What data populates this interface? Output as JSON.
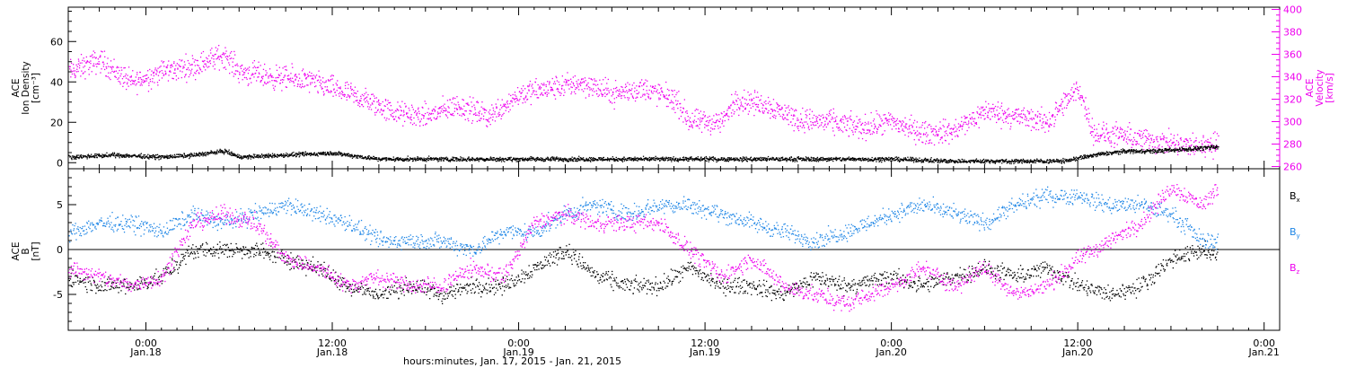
{
  "chart_data": [
    {
      "type": "scatter",
      "panel": "top",
      "x_axis": {
        "range": [
          "2015-01-17T19:00",
          "2015-01-21T01:00"
        ],
        "major_ticks": [
          {
            "t": "2015-01-18T00:00",
            "time": "0:00",
            "day": "Jan.18"
          },
          {
            "t": "2015-01-18T12:00",
            "time": "12:00",
            "day": "Jan.18"
          },
          {
            "t": "2015-01-19T00:00",
            "time": "0:00",
            "day": "Jan.19"
          },
          {
            "t": "2015-01-19T12:00",
            "time": "12:00",
            "day": "Jan.19"
          },
          {
            "t": "2015-01-20T00:00",
            "time": "0:00",
            "day": "Jan.20"
          },
          {
            "t": "2015-01-20T12:00",
            "time": "12:00",
            "day": "Jan.20"
          },
          {
            "t": "2015-01-21T00:00",
            "time": "0:00",
            "day": "Jan.21"
          }
        ],
        "title": "hours:minutes, Jan. 17, 2015 - Jan. 21, 2015"
      },
      "left_axis": {
        "label_lines": [
          "ACE",
          "Ion Density",
          "[cm⁻³]"
        ],
        "ylim": [
          -3,
          77
        ],
        "ticks": [
          0,
          20,
          40,
          60
        ]
      },
      "right_axis": {
        "label_lines": [
          "ACE",
          "Velocity",
          "[km/s]"
        ],
        "ylim": [
          258,
          402
        ],
        "ticks": [
          260,
          280,
          300,
          320,
          340,
          360,
          380,
          400
        ],
        "color": "#ee00ee"
      },
      "series": [
        {
          "axis": "left",
          "color": "#000000",
          "points": [
            [
              "2015-01-17T19:00",
              3
            ],
            [
              "2015-01-17T22:00",
              4
            ],
            [
              "2015-01-18T01:00",
              3
            ],
            [
              "2015-01-18T03:00",
              4
            ],
            [
              "2015-01-18T05:00",
              6
            ],
            [
              "2015-01-18T06:00",
              3
            ],
            [
              "2015-01-18T09:00",
              4
            ],
            [
              "2015-01-18T12:00",
              5
            ],
            [
              "2015-01-18T15:00",
              2
            ],
            [
              "2015-01-18T20:00",
              2
            ],
            [
              "2015-01-19T00:00",
              2
            ],
            [
              "2015-01-19T05:00",
              2
            ],
            [
              "2015-01-19T10:00",
              2
            ],
            [
              "2015-01-19T15:00",
              2
            ],
            [
              "2015-01-19T20:00",
              2
            ],
            [
              "2015-01-20T00:00",
              2
            ],
            [
              "2015-01-20T04:00",
              1
            ],
            [
              "2015-01-20T08:00",
              1
            ],
            [
              "2015-01-20T11:00",
              1
            ],
            [
              "2015-01-20T13:00",
              4
            ],
            [
              "2015-01-20T15:00",
              6
            ],
            [
              "2015-01-20T17:00",
              6
            ],
            [
              "2015-01-20T19:00",
              7
            ],
            [
              "2015-01-20T21:00",
              8
            ]
          ]
        },
        {
          "axis": "right",
          "color": "#ee00ee",
          "points": [
            [
              "2015-01-17T19:00",
              345
            ],
            [
              "2015-01-17T21:00",
              355
            ],
            [
              "2015-01-17T23:00",
              335
            ],
            [
              "2015-01-18T01:00",
              345
            ],
            [
              "2015-01-18T03:00",
              350
            ],
            [
              "2015-01-18T05:00",
              360
            ],
            [
              "2015-01-18T06:00",
              345
            ],
            [
              "2015-01-18T08:00",
              340
            ],
            [
              "2015-01-18T10:00",
              338
            ],
            [
              "2015-01-18T12:00",
              330
            ],
            [
              "2015-01-18T14:00",
              320
            ],
            [
              "2015-01-18T16:00",
              308
            ],
            [
              "2015-01-18T18:00",
              305
            ],
            [
              "2015-01-18T20:00",
              315
            ],
            [
              "2015-01-18T22:00",
              305
            ],
            [
              "2015-01-19T00:00",
              325
            ],
            [
              "2015-01-19T02:00",
              330
            ],
            [
              "2015-01-19T04:00",
              335
            ],
            [
              "2015-01-19T06:00",
              325
            ],
            [
              "2015-01-19T08:00",
              330
            ],
            [
              "2015-01-19T10:00",
              320
            ],
            [
              "2015-01-19T11:00",
              300
            ],
            [
              "2015-01-19T13:00",
              300
            ],
            [
              "2015-01-19T14:00",
              320
            ],
            [
              "2015-01-19T16:00",
              315
            ],
            [
              "2015-01-19T18:00",
              302
            ],
            [
              "2015-01-19T20:00",
              300
            ],
            [
              "2015-01-19T22:00",
              295
            ],
            [
              "2015-01-20T00:00",
              300
            ],
            [
              "2015-01-20T02:00",
              290
            ],
            [
              "2015-01-20T04:00",
              292
            ],
            [
              "2015-01-20T06:00",
              310
            ],
            [
              "2015-01-20T08:00",
              305
            ],
            [
              "2015-01-20T10:00",
              300
            ],
            [
              "2015-01-20T12:00",
              330
            ],
            [
              "2015-01-20T13:00",
              290
            ],
            [
              "2015-01-20T15:00",
              287
            ],
            [
              "2015-01-20T17:00",
              283
            ],
            [
              "2015-01-20T19:00",
              278
            ],
            [
              "2015-01-20T21:00",
              281
            ]
          ]
        }
      ]
    },
    {
      "type": "scatter",
      "panel": "bottom",
      "x_axis": {
        "same_as": "top"
      },
      "left_axis": {
        "label_lines": [
          "ACE",
          "B",
          "[nT]"
        ],
        "ylim": [
          -9,
          9
        ],
        "ticks": [
          -5,
          0,
          5
        ],
        "zero_line": true
      },
      "legend_position": "right",
      "series": [
        {
          "name": "Bx",
          "label_main": "B",
          "label_sub": "x",
          "color": "#000000",
          "points": [
            [
              "2015-01-17T19:00",
              -3
            ],
            [
              "2015-01-17T21:00",
              -4
            ],
            [
              "2015-01-17T23:00",
              -4
            ],
            [
              "2015-01-18T01:00",
              -3
            ],
            [
              "2015-01-18T03:00",
              0
            ],
            [
              "2015-01-18T05:00",
              0
            ],
            [
              "2015-01-18T07:00",
              0
            ],
            [
              "2015-01-18T09:00",
              -1
            ],
            [
              "2015-01-18T11:00",
              -2
            ],
            [
              "2015-01-18T13:00",
              -4
            ],
            [
              "2015-01-18T15:00",
              -5
            ],
            [
              "2015-01-18T17:00",
              -4
            ],
            [
              "2015-01-18T19:00",
              -5
            ],
            [
              "2015-01-18T21:00",
              -4
            ],
            [
              "2015-01-18T23:00",
              -4
            ],
            [
              "2015-01-19T01:00",
              -2
            ],
            [
              "2015-01-19T03:00",
              0
            ],
            [
              "2015-01-19T05:00",
              -3
            ],
            [
              "2015-01-19T07:00",
              -4
            ],
            [
              "2015-01-19T09:00",
              -4
            ],
            [
              "2015-01-19T11:00",
              -2
            ],
            [
              "2015-01-19T13:00",
              -4
            ],
            [
              "2015-01-19T15:00",
              -4
            ],
            [
              "2015-01-19T17:00",
              -5
            ],
            [
              "2015-01-19T19:00",
              -3
            ],
            [
              "2015-01-19T21:00",
              -4
            ],
            [
              "2015-01-20T00:00",
              -3
            ],
            [
              "2015-01-20T02:00",
              -4
            ],
            [
              "2015-01-20T04:00",
              -3
            ],
            [
              "2015-01-20T06:00",
              -2
            ],
            [
              "2015-01-20T08:00",
              -3
            ],
            [
              "2015-01-20T10:00",
              -2
            ],
            [
              "2015-01-20T12:00",
              -4
            ],
            [
              "2015-01-20T14:00",
              -5
            ],
            [
              "2015-01-20T16:00",
              -4
            ],
            [
              "2015-01-20T18:00",
              -1
            ],
            [
              "2015-01-20T20:00",
              0
            ],
            [
              "2015-01-20T21:00",
              -1
            ]
          ]
        },
        {
          "name": "By",
          "label_main": "B",
          "label_sub": "y",
          "color": "#1e86e6",
          "points": [
            [
              "2015-01-17T19:00",
              2
            ],
            [
              "2015-01-17T21:00",
              3
            ],
            [
              "2015-01-17T23:00",
              3
            ],
            [
              "2015-01-18T01:00",
              2
            ],
            [
              "2015-01-18T03:00",
              4
            ],
            [
              "2015-01-18T05:00",
              3
            ],
            [
              "2015-01-18T07:00",
              4
            ],
            [
              "2015-01-18T09:00",
              5
            ],
            [
              "2015-01-18T11:00",
              4
            ],
            [
              "2015-01-18T13:00",
              3
            ],
            [
              "2015-01-18T15:00",
              1
            ],
            [
              "2015-01-18T17:00",
              1
            ],
            [
              "2015-01-18T19:00",
              1
            ],
            [
              "2015-01-18T21:00",
              0
            ],
            [
              "2015-01-18T23:00",
              2
            ],
            [
              "2015-01-19T01:00",
              2
            ],
            [
              "2015-01-19T03:00",
              4
            ],
            [
              "2015-01-19T05:00",
              5
            ],
            [
              "2015-01-19T07:00",
              4
            ],
            [
              "2015-01-19T09:00",
              5
            ],
            [
              "2015-01-19T11:00",
              5
            ],
            [
              "2015-01-19T13:00",
              4
            ],
            [
              "2015-01-19T15:00",
              3
            ],
            [
              "2015-01-19T17:00",
              2
            ],
            [
              "2015-01-19T19:00",
              1
            ],
            [
              "2015-01-19T21:00",
              2
            ],
            [
              "2015-01-20T00:00",
              4
            ],
            [
              "2015-01-20T02:00",
              5
            ],
            [
              "2015-01-20T04:00",
              4
            ],
            [
              "2015-01-20T06:00",
              3
            ],
            [
              "2015-01-20T08:00",
              5
            ],
            [
              "2015-01-20T10:00",
              6
            ],
            [
              "2015-01-20T12:00",
              6
            ],
            [
              "2015-01-20T14:00",
              5
            ],
            [
              "2015-01-20T16:00",
              5
            ],
            [
              "2015-01-20T18:00",
              4
            ],
            [
              "2015-01-20T20:00",
              1
            ],
            [
              "2015-01-20T21:00",
              1
            ]
          ]
        },
        {
          "name": "Bz",
          "label_main": "B",
          "label_sub": "z",
          "color": "#ee00ee",
          "points": [
            [
              "2015-01-17T19:00",
              -2
            ],
            [
              "2015-01-17T21:00",
              -3
            ],
            [
              "2015-01-17T23:00",
              -4
            ],
            [
              "2015-01-18T01:00",
              -3
            ],
            [
              "2015-01-18T03:00",
              3
            ],
            [
              "2015-01-18T05:00",
              4
            ],
            [
              "2015-01-18T07:00",
              3
            ],
            [
              "2015-01-18T09:00",
              -1
            ],
            [
              "2015-01-18T11:00",
              -2
            ],
            [
              "2015-01-18T13:00",
              -4
            ],
            [
              "2015-01-18T15:00",
              -3
            ],
            [
              "2015-01-18T17:00",
              -4
            ],
            [
              "2015-01-18T19:00",
              -4
            ],
            [
              "2015-01-18T21:00",
              -2
            ],
            [
              "2015-01-18T23:00",
              -3
            ],
            [
              "2015-01-19T01:00",
              3
            ],
            [
              "2015-01-19T03:00",
              4
            ],
            [
              "2015-01-19T05:00",
              3
            ],
            [
              "2015-01-19T07:00",
              3
            ],
            [
              "2015-01-19T09:00",
              3
            ],
            [
              "2015-01-19T11:00",
              0
            ],
            [
              "2015-01-19T13:00",
              -3
            ],
            [
              "2015-01-19T15:00",
              -1
            ],
            [
              "2015-01-19T17:00",
              -4
            ],
            [
              "2015-01-19T19:00",
              -5
            ],
            [
              "2015-01-19T21:00",
              -6
            ],
            [
              "2015-01-20T00:00",
              -4
            ],
            [
              "2015-01-20T02:00",
              -2
            ],
            [
              "2015-01-20T04:00",
              -4
            ],
            [
              "2015-01-20T06:00",
              -2
            ],
            [
              "2015-01-20T08:00",
              -5
            ],
            [
              "2015-01-20T10:00",
              -4
            ],
            [
              "2015-01-20T12:00",
              -1
            ],
            [
              "2015-01-20T14:00",
              1
            ],
            [
              "2015-01-20T16:00",
              3
            ],
            [
              "2015-01-20T18:00",
              7
            ],
            [
              "2015-01-20T20:00",
              5
            ],
            [
              "2015-01-20T21:00",
              7
            ]
          ]
        }
      ]
    }
  ]
}
